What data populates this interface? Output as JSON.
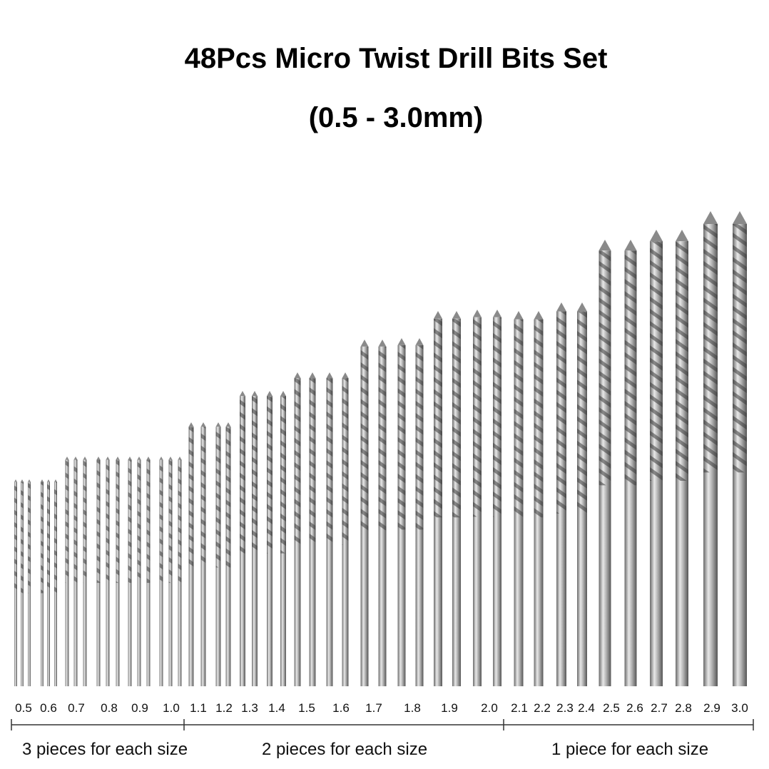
{
  "header": {
    "title": "48Pcs Micro Twist Drill Bits Set",
    "subtitle": "(0.5 - 3.0mm)"
  },
  "sizes": [
    "0.5",
    "0.6",
    "0.7",
    "0.8",
    "0.9",
    "1.0",
    "1.1",
    "1.2",
    "1.3",
    "1.4",
    "1.5",
    "1.6",
    "1.7",
    "1.8",
    "1.9",
    "2.0",
    "2.1",
    "2.2",
    "2.3",
    "2.4",
    "2.5",
    "2.6",
    "2.7",
    "2.8",
    "2.9",
    "3.0"
  ],
  "groups": [
    "3 pieces for each size",
    "2 pieces for each size",
    "1 piece for each size"
  ]
}
